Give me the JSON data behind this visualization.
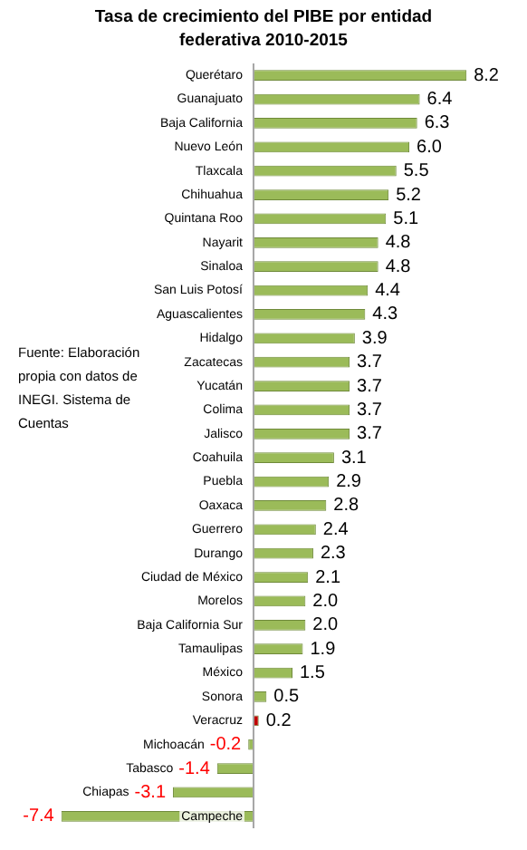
{
  "chart_data": {
    "type": "bar",
    "orientation": "horizontal",
    "title": "Tasa de crecimiento del PIBE por entidad federativa 2010-2015",
    "categories": [
      "Querétaro",
      "Guanajuato",
      "Baja California",
      "Nuevo León",
      "Tlaxcala",
      "Chihuahua",
      "Quintana Roo",
      "Nayarit",
      "Sinaloa",
      "San Luis Potosí",
      "Aguascalientes",
      "Hidalgo",
      "Zacatecas",
      "Yucatán",
      "Colima",
      "Jalisco",
      "Coahuila",
      "Puebla",
      "Oaxaca",
      "Guerrero",
      "Durango",
      "Ciudad de México",
      "Morelos",
      "Baja California Sur",
      "Tamaulipas",
      "México",
      "Sonora",
      "Veracruz",
      "Michoacán",
      "Tabasco",
      "Chiapas",
      "Campeche"
    ],
    "values": [
      8.2,
      6.4,
      6.3,
      6.0,
      5.5,
      5.2,
      5.1,
      4.8,
      4.8,
      4.4,
      4.3,
      3.9,
      3.7,
      3.7,
      3.7,
      3.7,
      3.1,
      2.9,
      2.8,
      2.4,
      2.3,
      2.1,
      2.0,
      2.0,
      1.9,
      1.5,
      0.5,
      0.2,
      -0.2,
      -1.4,
      -3.1,
      -7.4
    ],
    "colors": [
      "#9bbb59",
      "#9bbb59",
      "#9bbb59",
      "#9bbb59",
      "#9bbb59",
      "#9bbb59",
      "#9bbb59",
      "#9bbb59",
      "#9bbb59",
      "#9bbb59",
      "#9bbb59",
      "#9bbb59",
      "#9bbb59",
      "#9bbb59",
      "#9bbb59",
      "#9bbb59",
      "#9bbb59",
      "#9bbb59",
      "#9bbb59",
      "#9bbb59",
      "#9bbb59",
      "#9bbb59",
      "#9bbb59",
      "#9bbb59",
      "#9bbb59",
      "#9bbb59",
      "#9bbb59",
      "#c00000",
      "#9bbb59",
      "#9bbb59",
      "#9bbb59",
      "#9bbb59"
    ],
    "value_labels": [
      "8.2",
      "6.4",
      "6.3",
      "6.0",
      "5.5",
      "5.2",
      "5.1",
      "4.8",
      "4.8",
      "4.4",
      "4.3",
      "3.9",
      "3.7",
      "3.7",
      "3.7",
      "3.7",
      "3.1",
      "2.9",
      "2.8",
      "2.4",
      "2.3",
      "2.1",
      "2.0",
      "2.0",
      "1.9",
      "1.5",
      "0.5",
      "0.2",
      "-0.2",
      "-1.4",
      "-3.1",
      "-7.4"
    ],
    "annotations": [
      "Fuente: Elaboración propia con datos de INEGI. Sistema de Cuentas"
    ],
    "legend": false,
    "tick_labels": false
  }
}
